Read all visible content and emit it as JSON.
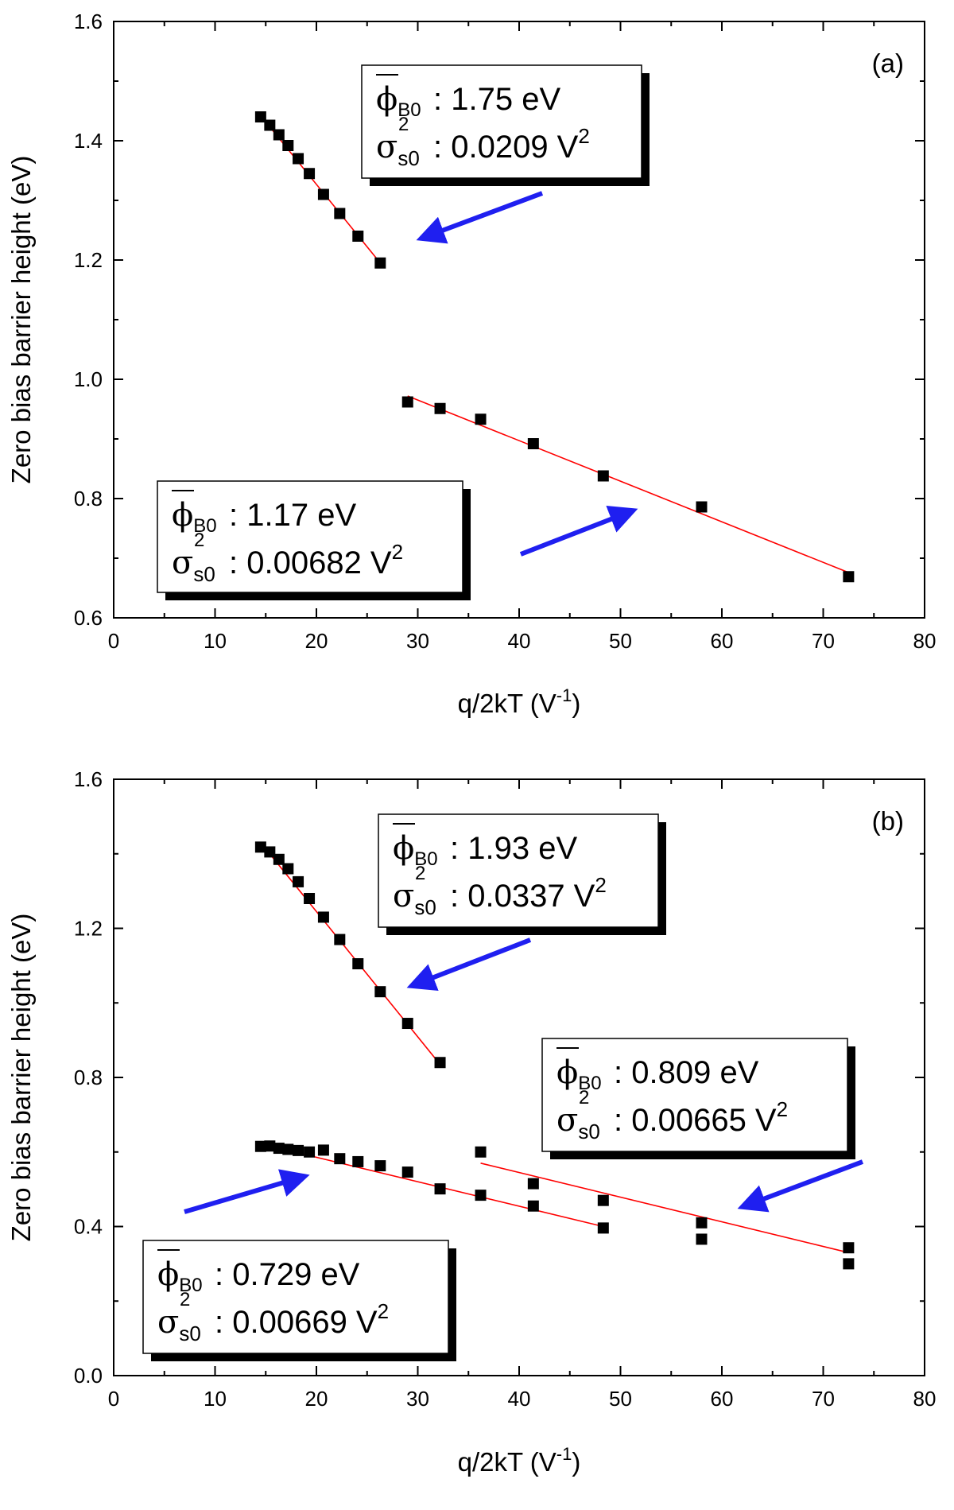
{
  "chart_data": [
    {
      "type": "scatter",
      "panel_label": "(a)",
      "xlabel": "q/2kT",
      "xlabel_unit_base": "V",
      "xlabel_unit_exp": "-1",
      "ylabel": "Zero bias barrier height (eV)",
      "xlim": [
        0,
        80
      ],
      "ylim": [
        0.6,
        1.6
      ],
      "xticks": [
        "0",
        "10",
        "20",
        "30",
        "40",
        "50",
        "60",
        "70",
        "80"
      ],
      "yticks": [
        "0.6",
        "0.8",
        "1.0",
        "1.2",
        "1.4",
        "1.6"
      ],
      "series": [
        {
          "x": [
            14.5,
            15.4,
            16.3,
            17.2,
            18.2,
            19.3,
            20.7,
            22.3,
            24.1,
            26.3
          ],
          "y": [
            1.44,
            1.426,
            1.41,
            1.392,
            1.37,
            1.345,
            1.31,
            1.278,
            1.24,
            1.195
          ],
          "fit": [
            [
              14.5,
              1.442
            ],
            [
              26.3,
              1.195
            ]
          ]
        },
        {
          "x": [
            29.0,
            32.2,
            36.2,
            41.4,
            48.3,
            58.0,
            72.5
          ],
          "y": [
            0.962,
            0.951,
            0.933,
            0.892,
            0.838,
            0.786,
            0.669
          ],
          "fit": [
            [
              29.0,
              0.972
            ],
            [
              72.5,
              0.676
            ]
          ]
        }
      ],
      "annotations": [
        {
          "phi_label": "1.75 eV",
          "sigma_label": "0.0209 V",
          "sup": "2"
        },
        {
          "phi_label": "1.17 eV",
          "sigma_label": "0.00682 V",
          "sup": "2"
        }
      ],
      "arrow_color": "#1f1ff0",
      "fit_color": "#ff0000"
    },
    {
      "type": "scatter",
      "panel_label": "(b)",
      "xlabel": "q/2kT",
      "xlabel_unit_base": "V",
      "xlabel_unit_exp": "-1",
      "ylabel": "Zero bias barrier height (eV)",
      "xlim": [
        0,
        80
      ],
      "ylim": [
        0.0,
        1.6
      ],
      "xticks": [
        "0",
        "10",
        "20",
        "30",
        "40",
        "50",
        "60",
        "70",
        "80"
      ],
      "yticks": [
        "0.0",
        "0.4",
        "0.8",
        "1.2",
        "1.6"
      ],
      "series": [
        {
          "x": [
            14.5,
            15.4,
            16.3,
            17.2,
            18.2,
            19.3,
            20.7,
            22.3,
            24.1,
            26.3,
            29.0,
            32.2
          ],
          "y": [
            1.418,
            1.405,
            1.385,
            1.36,
            1.325,
            1.28,
            1.23,
            1.17,
            1.105,
            1.03,
            0.945,
            0.84
          ],
          "fit": [
            [
              14.5,
              1.43
            ],
            [
              32.2,
              0.835
            ]
          ]
        },
        {
          "x": [
            14.5,
            15.4,
            16.3,
            17.2,
            18.2,
            19.3,
            20.7,
            22.3,
            24.1,
            26.3,
            29.0,
            32.2,
            36.2,
            41.4,
            48.3
          ],
          "y": [
            0.615,
            0.616,
            0.61,
            0.607,
            0.604,
            0.6,
            0.605,
            0.582,
            0.574,
            0.563,
            0.546,
            0.501,
            0.484,
            0.455,
            0.396
          ],
          "fit": [
            [
              14.5,
              0.622
            ],
            [
              48.3,
              0.4
            ]
          ]
        },
        {
          "x": [
            36.2,
            41.4,
            48.3,
            58.0,
            72.5,
            58.0,
            72.5
          ],
          "y": [
            0.6,
            0.515,
            0.47,
            0.41,
            0.343,
            0.366,
            0.3
          ],
          "fit": [
            [
              36.2,
              0.57
            ],
            [
              72.5,
              0.33
            ]
          ]
        }
      ],
      "annotations": [
        {
          "phi_label": "1.93 eV",
          "sigma_label": "0.0337 V",
          "sup": "2"
        },
        {
          "phi_label": "0.809 eV",
          "sigma_label": "0.00665 V",
          "sup": "2"
        },
        {
          "phi_label": "0.729 eV",
          "sigma_label": "0.00669 V",
          "sup": "2"
        }
      ],
      "arrow_color": "#1f1ff0",
      "fit_color": "#ff0000"
    }
  ]
}
